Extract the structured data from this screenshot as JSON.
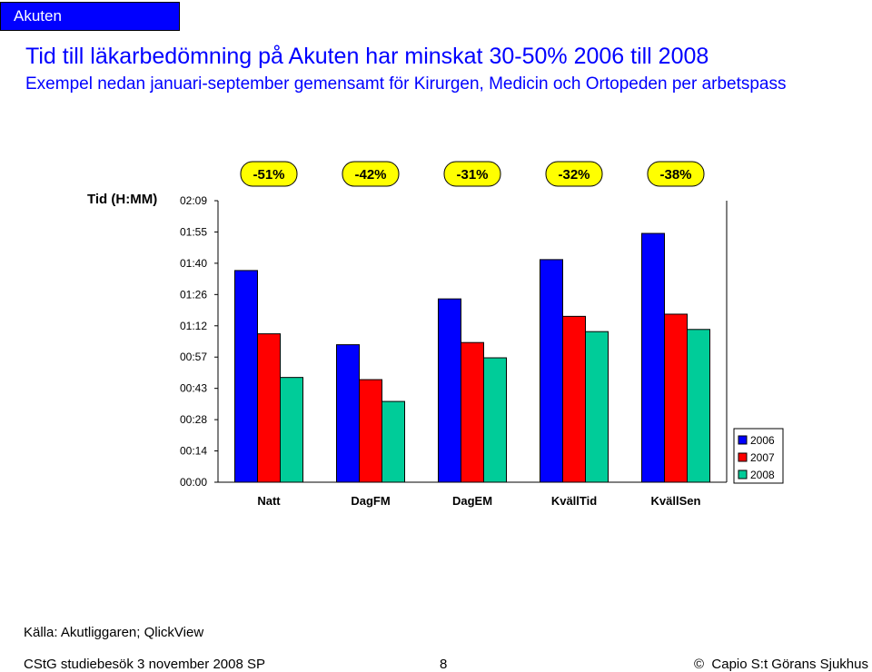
{
  "tab": {
    "label": "Akuten"
  },
  "header": {
    "title": "Tid till läkarbedömning på Akuten har minskat 30-50% 2006 till 2008",
    "subtitle": "Exempel nedan januari-september gemensamt för Kirurgen, Medicin och Ortopeden per arbetspass"
  },
  "footer": {
    "source": "Källa: Akutliggaren; QlickView",
    "left": "CStG studiebesök 3 november 2008 SP",
    "page": "8",
    "copyright_symbol": "©",
    "right": "Capio S:t Görans Sjukhus"
  },
  "chart_data": {
    "type": "bar",
    "title": "",
    "ylabel": "Tid (H:MM)",
    "xlabel": "",
    "ylim_minutes": [
      0,
      129
    ],
    "y_tick_labels": [
      "00:00",
      "00:14",
      "00:28",
      "00:43",
      "00:57",
      "01:12",
      "01:26",
      "01:40",
      "01:55",
      "02:09"
    ],
    "categories": [
      "Natt",
      "DagFM",
      "DagEM",
      "KvällTid",
      "KvällSen"
    ],
    "series": [
      {
        "name": "2006",
        "color": "#0000ff",
        "values_minutes": [
          97,
          63,
          84,
          102,
          114
        ]
      },
      {
        "name": "2007",
        "color": "#ff0000",
        "values_minutes": [
          68,
          47,
          64,
          76,
          77
        ]
      },
      {
        "name": "2008",
        "color": "#00cc99",
        "values_minutes": [
          48,
          37,
          57,
          69,
          70
        ]
      }
    ],
    "change_labels": [
      "-51%",
      "-42%",
      "-31%",
      "-32%",
      "-38%"
    ],
    "change_label_fill": "#ffff00",
    "legend_position": "right"
  }
}
